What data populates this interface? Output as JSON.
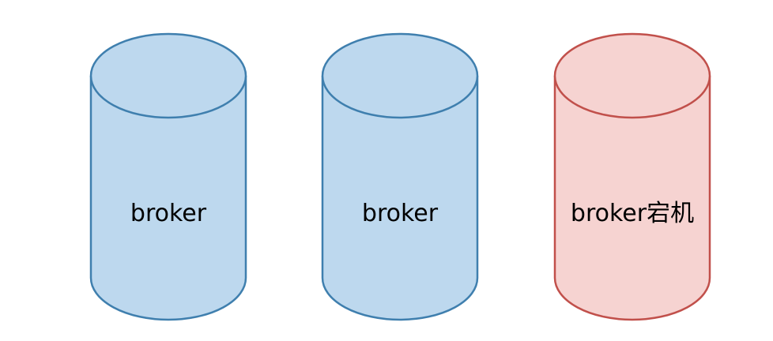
{
  "diagram": {
    "nodes": [
      {
        "id": "broker-1",
        "label": "broker",
        "status": "normal",
        "fill": "#bdd8ee",
        "stroke": "#3f7fae"
      },
      {
        "id": "broker-2",
        "label": "broker",
        "status": "normal",
        "fill": "#bdd8ee",
        "stroke": "#3f7fae"
      },
      {
        "id": "broker-3",
        "label": "broker宕机",
        "status": "down",
        "fill": "#f6d3d1",
        "stroke": "#c1504b"
      }
    ]
  }
}
